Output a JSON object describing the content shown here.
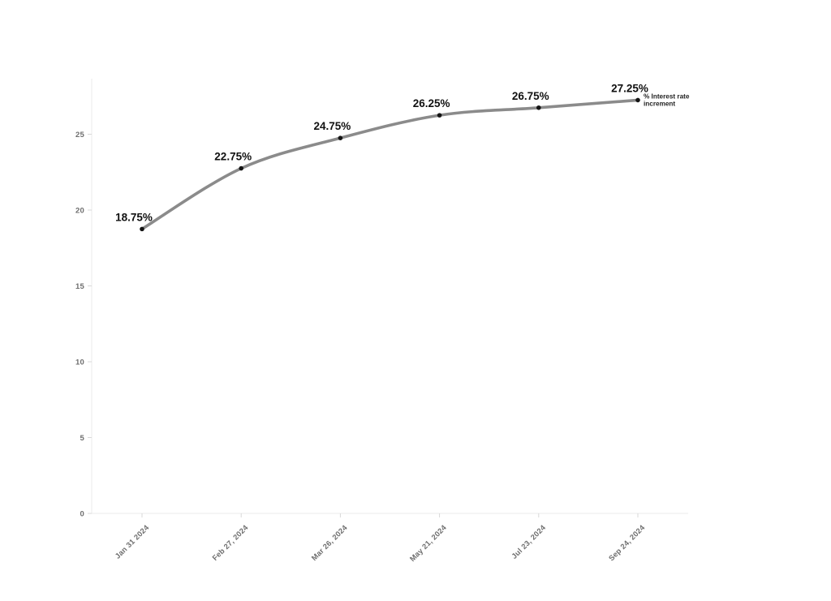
{
  "page": {
    "background": "#ffffff"
  },
  "chart_data": {
    "type": "line",
    "title": "",
    "xlabel": "",
    "ylabel": "",
    "categories": [
      "Jan 31 2024",
      "Feb 27, 2024",
      "Mar 26, 2024",
      "May 21, 2024",
      "Jul 23, 2024",
      "Sep 24, 2024"
    ],
    "series": [
      {
        "name": "% Interest rate increment",
        "name_lines": [
          "% Interest rate",
          "increment"
        ],
        "values": [
          18.75,
          22.75,
          24.75,
          26.25,
          26.75,
          27.25
        ],
        "point_labels": [
          "18.75%",
          "22.75%",
          "24.75%",
          "26.25%",
          "26.75%",
          "27.25%"
        ],
        "line_color": "#8b8b8b",
        "point_color": "#141414",
        "label_color": "#111111"
      }
    ],
    "ylim": [
      0,
      28.5
    ],
    "yticks": [
      0,
      5,
      10,
      15,
      20,
      25
    ],
    "grid": false,
    "legend_position": "line-end",
    "axis_color": "#ebebeb",
    "tick_mark_color": "#d8d8d8",
    "tick_text_color": "#6e6e6e",
    "series_label_color": "#222222"
  }
}
